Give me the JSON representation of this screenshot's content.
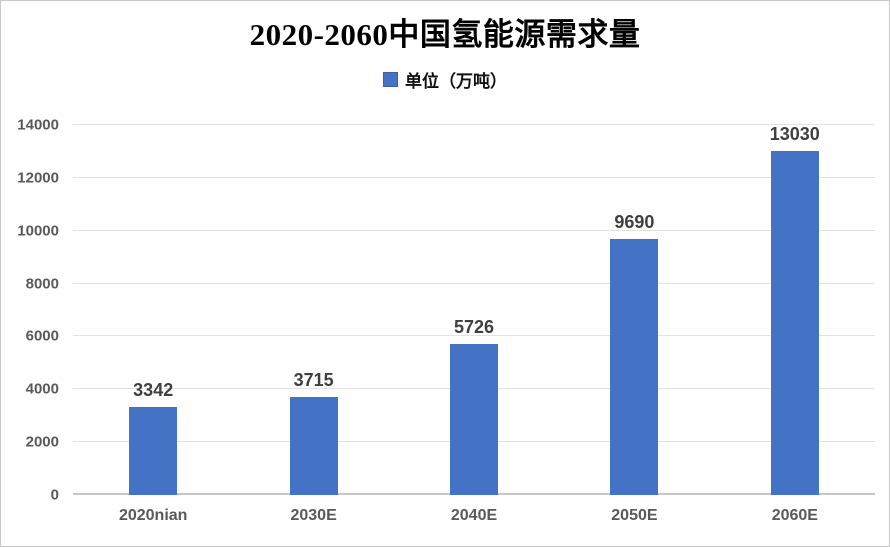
{
  "chart_data": {
    "type": "bar",
    "title": "2020-2060中国氢能源需求量",
    "legend": [
      "单位（万吨）"
    ],
    "categories": [
      "2020nian",
      "2030E",
      "2040E",
      "2050E",
      "2060E"
    ],
    "values": [
      3342,
      3715,
      5726,
      9690,
      13030
    ],
    "ylim": [
      0,
      14000
    ],
    "yticks": [
      0,
      2000,
      4000,
      6000,
      8000,
      10000,
      12000,
      14000
    ],
    "xlabel": "",
    "ylabel": "",
    "grid": true,
    "legend_position": "top",
    "colors": {
      "bar": "#4472C4",
      "swatch_border": "#3A5FA8",
      "gridline": "#E3E3E3",
      "axis_line": "#C6C6C6",
      "tick_label": "#595959",
      "data_label": "#3F3F3F",
      "title": "#000000"
    }
  }
}
